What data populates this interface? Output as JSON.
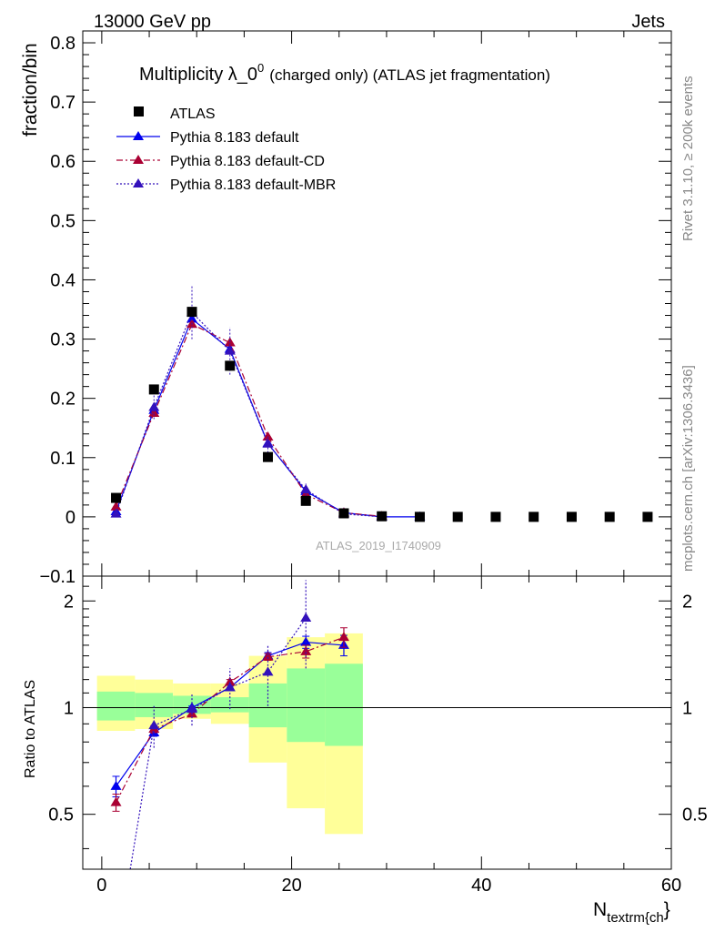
{
  "header": {
    "energy_label": "13000 GeV pp",
    "category_label": "Jets"
  },
  "side_labels": {
    "rivet": "Rivet 3.1.10, ≥ 200k events",
    "mcplots": "mcplots.cern.ch [arXiv:1306.3436]"
  },
  "watermark": "ATLAS_2019_I1740909",
  "colors": {
    "atlas": "#000000",
    "default": "#0000ee",
    "cd": "#aa0033",
    "mbr": "#3311bb",
    "band_inner": "#99ff99",
    "band_outer": "#ffff99"
  },
  "chart_data": [
    {
      "type": "scatter",
      "title": "Multiplicity λ_0",
      "title_sup": "0",
      "title_suffix": "(charged only) (ATLAS jet fragmentation)",
      "ylabel": "fraction/bin",
      "xlim": [
        -2,
        60
      ],
      "ylim": [
        -0.1,
        0.82
      ],
      "x_ticks": [
        0,
        20,
        40,
        60
      ],
      "y_ticks": [
        -0.1,
        0,
        0.1,
        0.2,
        0.3,
        0.4,
        0.5,
        0.6,
        0.7,
        0.8
      ],
      "y_tick_labels": [
        "−0.1",
        "0",
        "0.1",
        "0.2",
        "0.3",
        "0.4",
        "0.5",
        "0.6",
        "0.7",
        "0.8"
      ],
      "legend": [
        "ATLAS",
        "Pythia 8.183 default",
        "Pythia 8.183 default-CD",
        "Pythia 8.183 default-MBR"
      ],
      "series": [
        {
          "name": "ATLAS",
          "style": "marker",
          "x": [
            1.5,
            5.5,
            9.5,
            13.5,
            17.5,
            21.5,
            25.5,
            29.5,
            33.5,
            37.5,
            41.5,
            45.5,
            49.5,
            53.5,
            57.5
          ],
          "values": [
            0.032,
            0.215,
            0.346,
            0.255,
            0.101,
            0.027,
            0.006,
            0.001,
            0.0,
            0.0,
            0.0,
            0.0,
            0.0,
            0.0,
            0.0
          ]
        },
        {
          "name": "Pythia 8.183 default",
          "style": "solid",
          "x": [
            1.5,
            5.5,
            9.5,
            13.5,
            17.5,
            21.5,
            25.5,
            29.5,
            33.5
          ],
          "values": [
            0.009,
            0.18,
            0.334,
            0.283,
            0.124,
            0.043,
            0.007,
            0.0,
            0.0
          ]
        },
        {
          "name": "Pythia 8.183 default-CD",
          "style": "dashdot",
          "x": [
            1.5,
            5.5,
            9.5,
            13.5,
            17.5,
            21.5,
            25.5,
            29.5
          ],
          "values": [
            0.017,
            0.175,
            0.325,
            0.294,
            0.135,
            0.038,
            0.007,
            0.001
          ]
        },
        {
          "name": "Pythia 8.183 default-MBR",
          "style": "dotted",
          "x": [
            1.5,
            5.5,
            9.5,
            13.5,
            17.5,
            21.5,
            25.5,
            29.5
          ],
          "values": [
            0.005,
            0.185,
            0.345,
            0.28,
            0.123,
            0.046,
            0.005,
            0.0
          ],
          "err": [
            0.003,
            0.02,
            0.045,
            0.04,
            0.015,
            0.01,
            0.004,
            0.002
          ]
        }
      ]
    },
    {
      "type": "line",
      "title": "Ratio to ATLAS",
      "ylabel": "Ratio to ATLAS",
      "xlabel": "N_textrm{ch}",
      "xlabel_main": "N",
      "xlabel_sub": "textrm{ch",
      "xlabel_suffix": "}",
      "xlim": [
        -2,
        60
      ],
      "ylim": [
        0.35,
        2.35
      ],
      "y_log": true,
      "x_ticks": [
        0,
        20,
        40,
        60
      ],
      "y_ticks": [
        0.5,
        1,
        2
      ],
      "y_tick_labels": [
        "0.5",
        "1",
        "2"
      ],
      "bands": {
        "edges": [
          -0.5,
          3.5,
          7.5,
          11.5,
          15.5,
          19.5,
          23.5,
          27.5
        ],
        "inner_lo": [
          0.92,
          0.94,
          0.96,
          0.97,
          0.88,
          0.8,
          0.78
        ],
        "inner_hi": [
          1.11,
          1.1,
          1.08,
          1.07,
          1.17,
          1.29,
          1.33
        ],
        "outer_lo": [
          0.86,
          0.87,
          0.93,
          0.9,
          0.7,
          0.52,
          0.44
        ],
        "outer_hi": [
          1.23,
          1.2,
          1.17,
          1.17,
          1.4,
          1.58,
          1.62
        ]
      },
      "series": [
        {
          "name": "Pythia 8.183 default",
          "style": "solid",
          "x": [
            1.5,
            5.5,
            9.5,
            13.5,
            17.5,
            21.5,
            25.5
          ],
          "values": [
            0.6,
            0.85,
            1.0,
            1.14,
            1.4,
            1.53,
            1.5
          ],
          "err": [
            0.04,
            0.02,
            0.01,
            0.02,
            0.03,
            0.06,
            0.1
          ]
        },
        {
          "name": "Pythia 8.183 default-CD",
          "style": "dashdot",
          "x": [
            1.5,
            5.5,
            9.5,
            13.5,
            17.5,
            21.5,
            25.5
          ],
          "values": [
            0.54,
            0.87,
            0.96,
            1.18,
            1.39,
            1.44,
            1.58
          ],
          "err": [
            0.03,
            0.02,
            0.01,
            0.02,
            0.03,
            0.06,
            0.1
          ]
        },
        {
          "name": "Pythia 8.183 default-MBR",
          "style": "dotted",
          "x": [
            3.0,
            5.5,
            9.5,
            13.5,
            17.5,
            21.5
          ],
          "values": [
            0.35,
            0.89,
            0.99,
            1.14,
            1.26,
            1.79
          ],
          "err": [
            0.0,
            0.12,
            0.1,
            0.15,
            0.25,
            0.5
          ]
        }
      ]
    }
  ]
}
